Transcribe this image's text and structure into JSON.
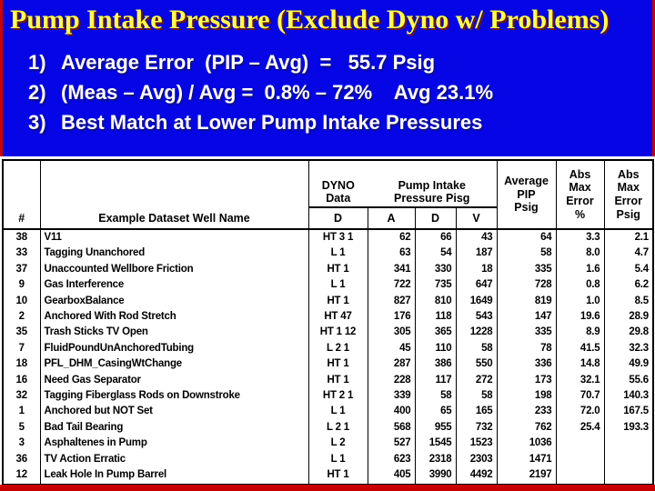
{
  "slide": {
    "title": "Pump Intake Pressure (Exclude Dyno w/ Problems)",
    "bullets": [
      {
        "num": "1)",
        "text": "Average Error  (PIP – Avg)  =   55.7 Psig"
      },
      {
        "num": "2)",
        "text": "(Meas – Avg) / Avg =  0.8% – 72%    Avg 23.1%"
      },
      {
        "num": "3)",
        "text": "Best Match at Lower Pump Intake Pressures"
      }
    ]
  },
  "table": {
    "headers": {
      "num": "#",
      "well": "Example Dataset Well Name",
      "dyno_group": "DYNO\nData",
      "pip_group": "Pump Intake\nPressure  Pisg",
      "subs": [
        "D",
        "A",
        "D",
        "V"
      ],
      "avg": "Average\nPIP\nPsig",
      "abs_pct": "Abs\nMax\nError\n%",
      "abs_psig": "Abs\nMax\nError\nPsig"
    },
    "rows": [
      [
        "38",
        "V11",
        "HT 3 1",
        "62",
        "66",
        "43",
        "64",
        "3.3",
        "2.1"
      ],
      [
        "33",
        "Tagging Unanchored",
        "L 1",
        "63",
        "54",
        "187",
        "58",
        "8.0",
        "4.7"
      ],
      [
        "37",
        "Unaccounted Wellbore Friction",
        "HT 1",
        "341",
        "330",
        "18",
        "335",
        "1.6",
        "5.4"
      ],
      [
        "9",
        "Gas Interference",
        "L 1",
        "722",
        "735",
        "647",
        "728",
        "0.8",
        "6.2"
      ],
      [
        "10",
        "GearboxBalance",
        "HT 1",
        "827",
        "810",
        "1649",
        "819",
        "1.0",
        "8.5"
      ],
      [
        "2",
        "Anchored With Rod Stretch",
        "HT 47",
        "176",
        "118",
        "543",
        "147",
        "19.6",
        "28.9"
      ],
      [
        "35",
        "Trash Sticks TV Open",
        "HT 1 12",
        "305",
        "365",
        "1228",
        "335",
        "8.9",
        "29.8"
      ],
      [
        "7",
        "FluidPoundUnAnchoredTubing",
        "L 2 1",
        "45",
        "110",
        "58",
        "78",
        "41.5",
        "32.3"
      ],
      [
        "18",
        "PFL_DHM_CasingWtChange",
        "HT 1",
        "287",
        "386",
        "550",
        "336",
        "14.8",
        "49.9"
      ],
      [
        "16",
        "Need Gas Separator",
        "HT 1",
        "228",
        "117",
        "272",
        "173",
        "32.1",
        "55.6"
      ],
      [
        "32",
        "Tagging Fiberglass Rods on Downstroke",
        "HT 2 1",
        "339",
        "58",
        "58",
        "198",
        "70.7",
        "140.3"
      ],
      [
        "1",
        "Anchored but NOT Set",
        "L 1",
        "400",
        "65",
        "165",
        "233",
        "72.0",
        "167.5"
      ],
      [
        "5",
        "Bad Tail Bearing",
        "L 2 1",
        "568",
        "955",
        "732",
        "762",
        "25.4",
        "193.3"
      ],
      [
        "3",
        "Asphaltenes in Pump",
        "L 2",
        "527",
        "1545",
        "1523",
        "1036",
        "",
        ""
      ],
      [
        "36",
        "TV Action Erratic",
        "L 1",
        "623",
        "2318",
        "2303",
        "1471",
        "",
        ""
      ],
      [
        "12",
        "Leak Hole In Pump Barrel",
        "HT 1",
        "405",
        "3990",
        "4492",
        "2197",
        "",
        ""
      ]
    ]
  },
  "colors": {
    "banner_blue": "#0505e6",
    "accent_red": "#c80000",
    "title_yellow": "#ffff42",
    "body_text": "#000000"
  }
}
